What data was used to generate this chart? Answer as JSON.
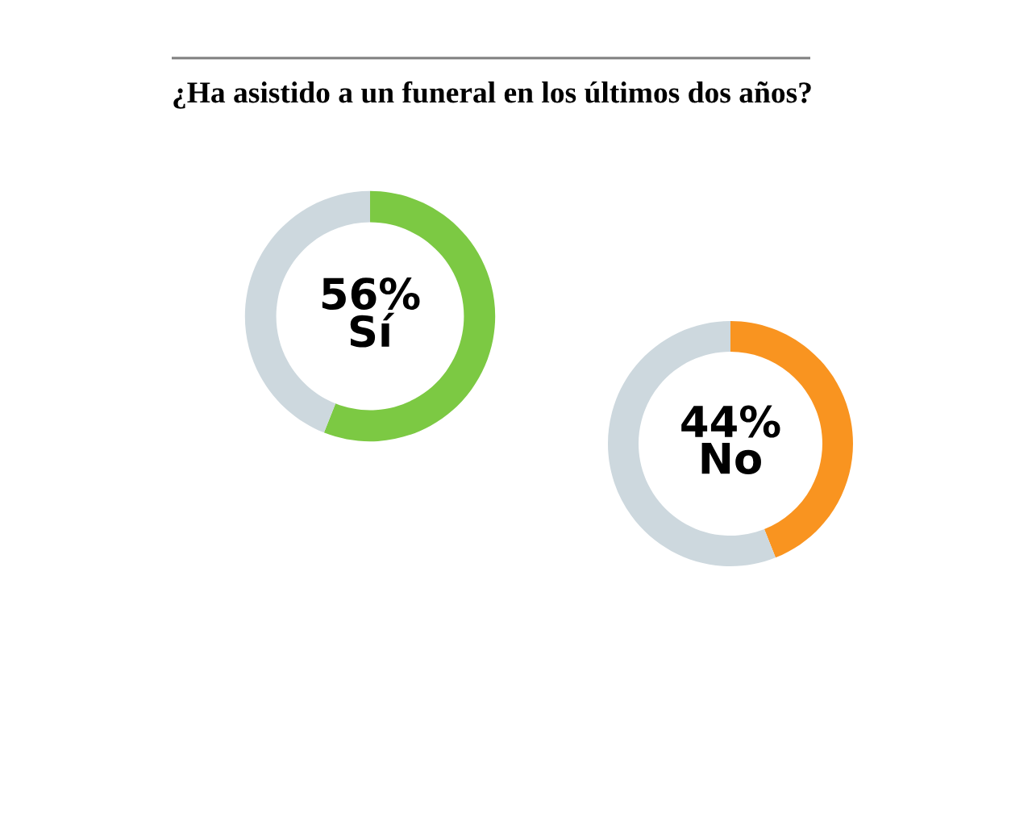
{
  "chart_data": [
    {
      "type": "donut",
      "title": "¿Ha asistido a un funeral en los últimos dos años?",
      "categories": [
        "Sí",
        null
      ],
      "values": [
        56,
        44
      ],
      "colors": [
        "#7cc943",
        "#cdd8de"
      ],
      "value_labels": [
        "56%",
        null
      ]
    },
    {
      "type": "donut",
      "categories": [
        "No",
        null
      ],
      "values": [
        44,
        56
      ],
      "colors": [
        "#f99420",
        "#cdd8de"
      ],
      "value_labels": [
        "44%",
        null
      ]
    }
  ]
}
